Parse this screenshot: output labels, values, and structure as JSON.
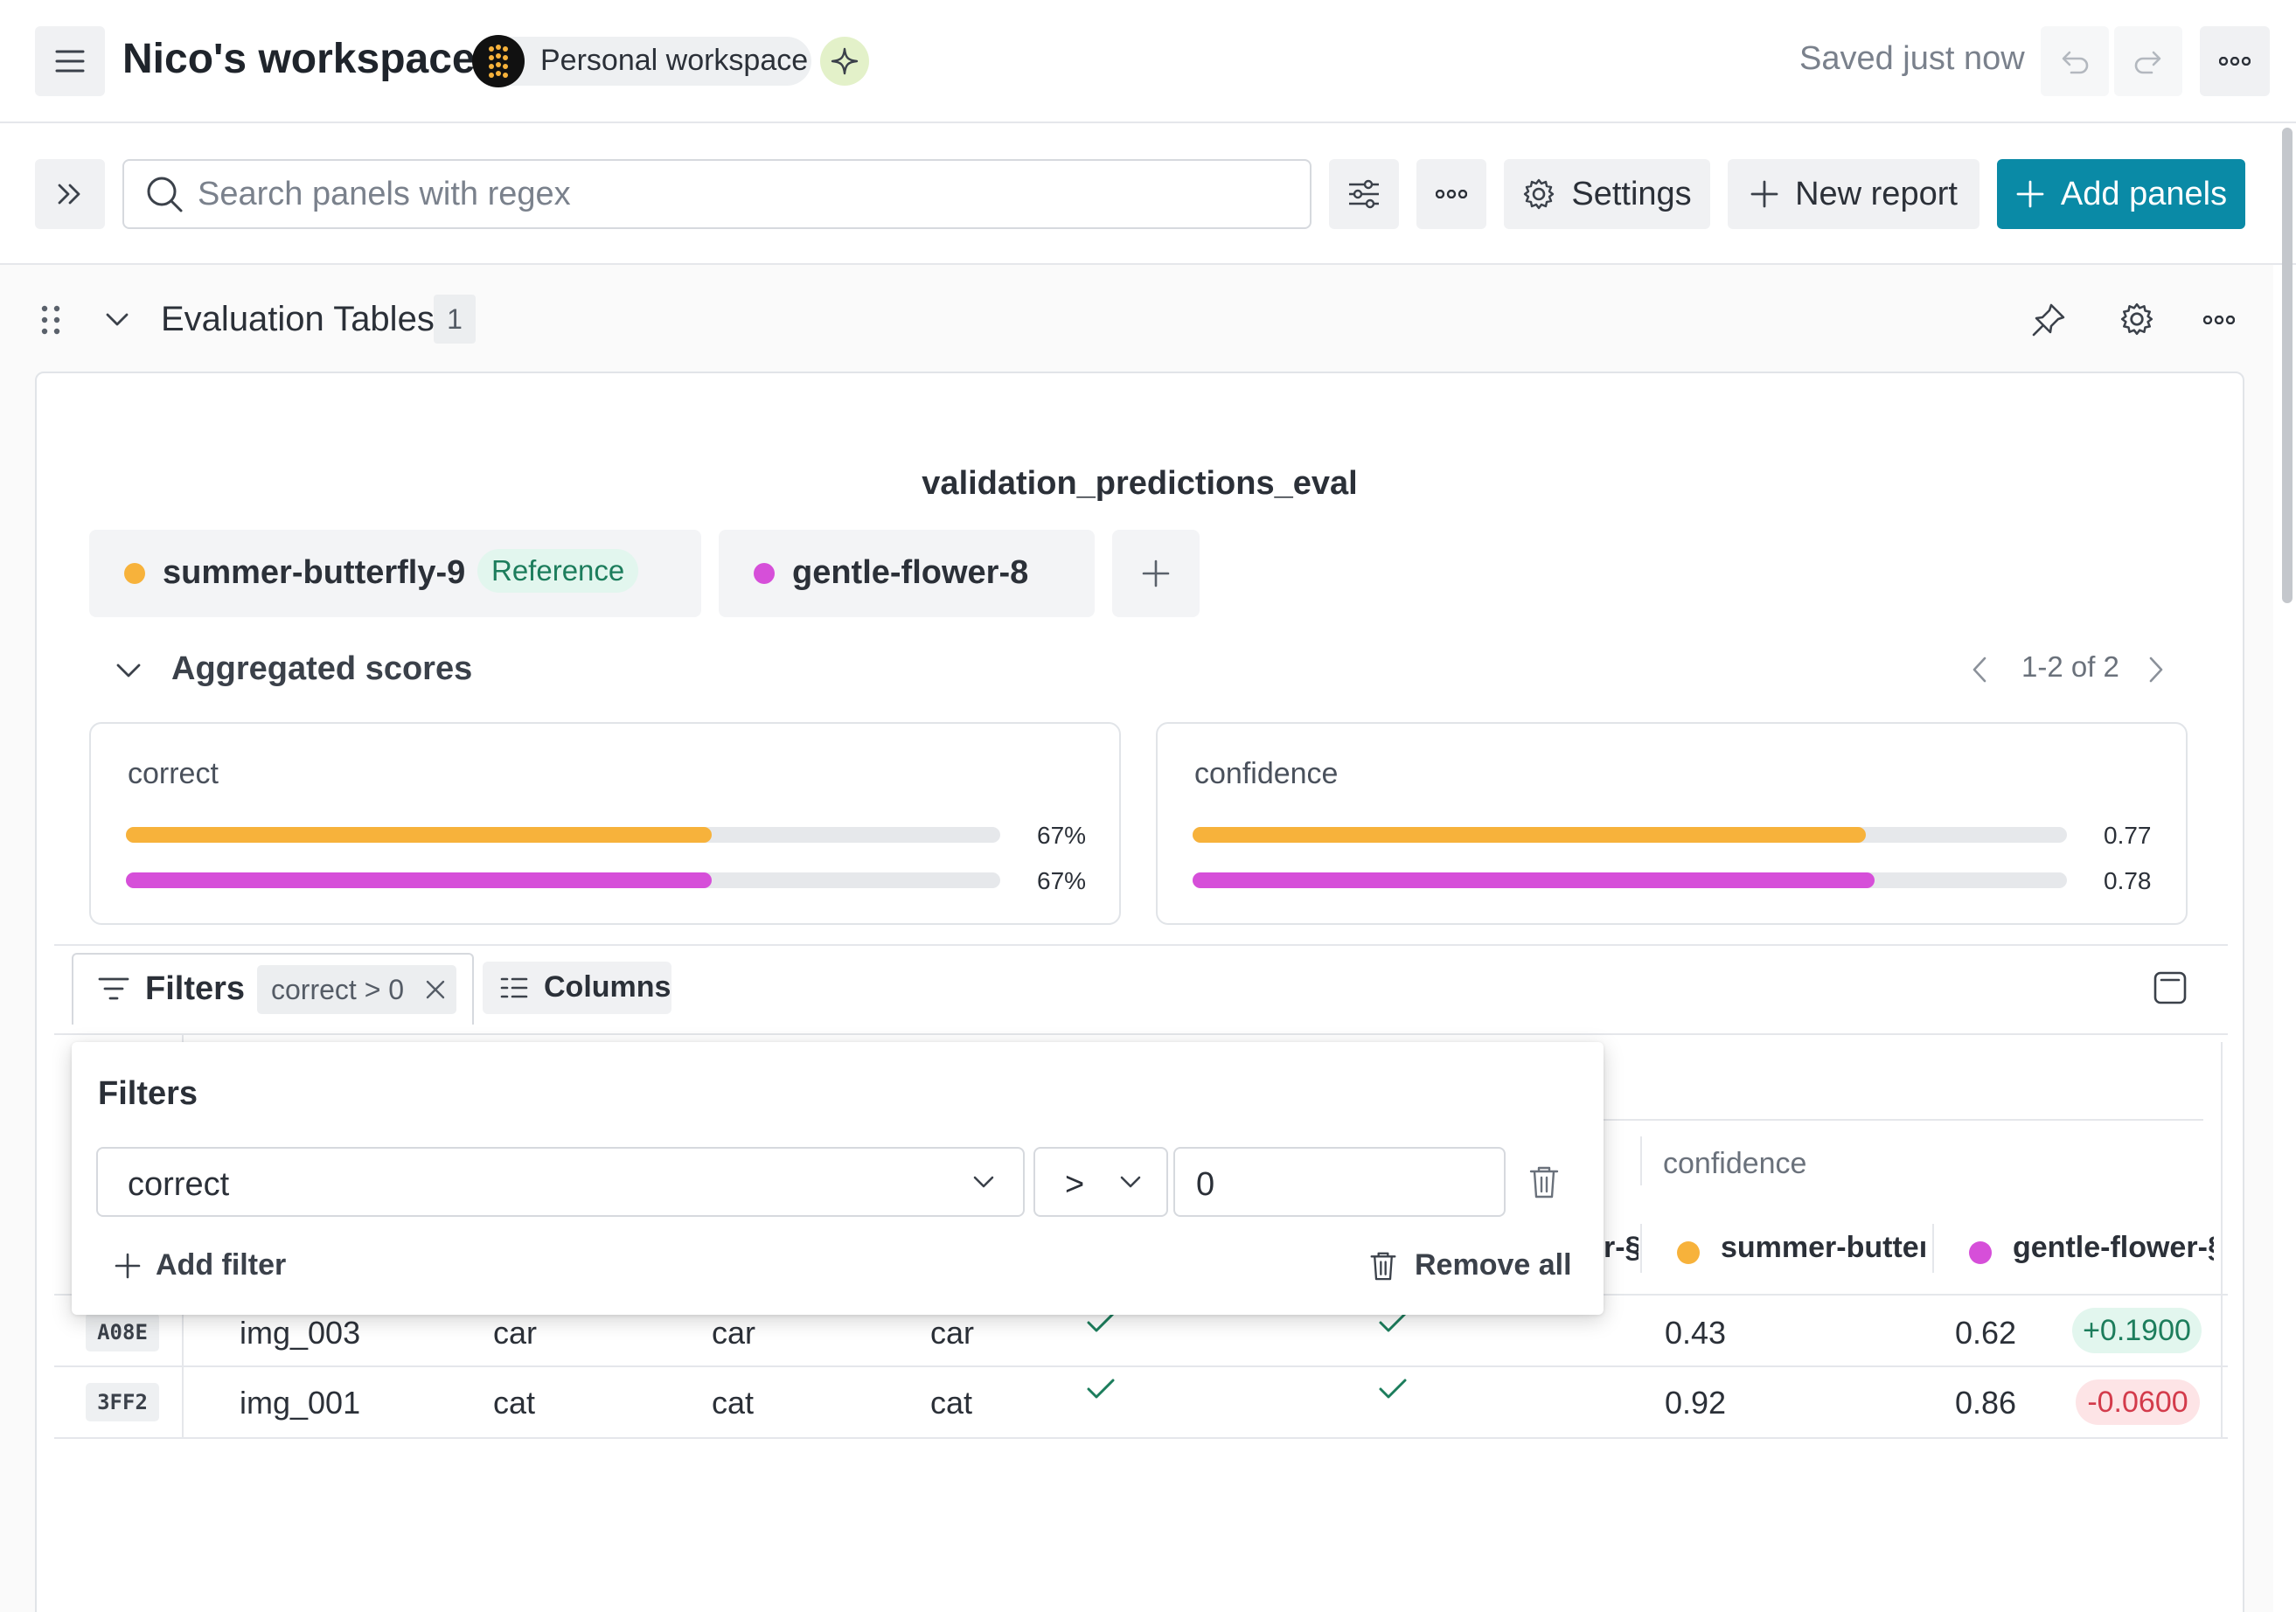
{
  "header": {
    "workspace_title": "Nico's workspace",
    "workspace_badge": "Personal workspace",
    "save_status": "Saved just now"
  },
  "toolbar": {
    "search_placeholder": "Search panels with regex",
    "settings_label": "Settings",
    "new_report_label": "New report",
    "add_panels_label": "Add panels"
  },
  "section": {
    "title": "Evaluation Tables",
    "count": "1"
  },
  "panel": {
    "title": "validation_predictions_eval",
    "runs": [
      {
        "name": "summer-butterfly-9",
        "badge": "Reference",
        "color": "#f7b23b"
      },
      {
        "name": "gentle-flower-8",
        "color": "#d64fd9"
      }
    ],
    "aggregated_label": "Aggregated scores",
    "pagination": "1-2 of 2",
    "scores": [
      {
        "label": "correct",
        "values": [
          0.67,
          0.67
        ],
        "value_labels": [
          "67%",
          "67%"
        ]
      },
      {
        "label": "confidence",
        "values": [
          0.77,
          0.78
        ],
        "value_labels": [
          "0.77",
          "0.78"
        ]
      }
    ]
  },
  "table": {
    "filters_label": "Filters",
    "active_filter": "correct > 0",
    "columns_label": "Columns",
    "group_header": "confidence",
    "col_summer": "summer-butteı",
    "col_gentle": "gentle-flower-§",
    "col_partial": "r-§",
    "rows": [
      {
        "id": "A08E",
        "image": "img_003",
        "label": "car",
        "pred_a": "car",
        "pred_b": "car",
        "conf_a": "0.43",
        "conf_b": "0.62",
        "delta": "+0.1900"
      },
      {
        "id": "3FF2",
        "image": "img_001",
        "label": "cat",
        "pred_a": "cat",
        "pred_b": "cat",
        "conf_a": "0.92",
        "conf_b": "0.86",
        "delta": "-0.0600"
      }
    ]
  },
  "filter_popover": {
    "title": "Filters",
    "field_value": "correct",
    "operator_value": ">",
    "value": "0",
    "add_filter_label": "Add filter",
    "remove_all_label": "Remove all"
  },
  "colors": {
    "accent": "#0a8aa6",
    "run_a": "#f7b23b",
    "run_b": "#d64fd9",
    "positive_bg": "#e2f6ee",
    "negative_bg": "#fde4e6"
  }
}
